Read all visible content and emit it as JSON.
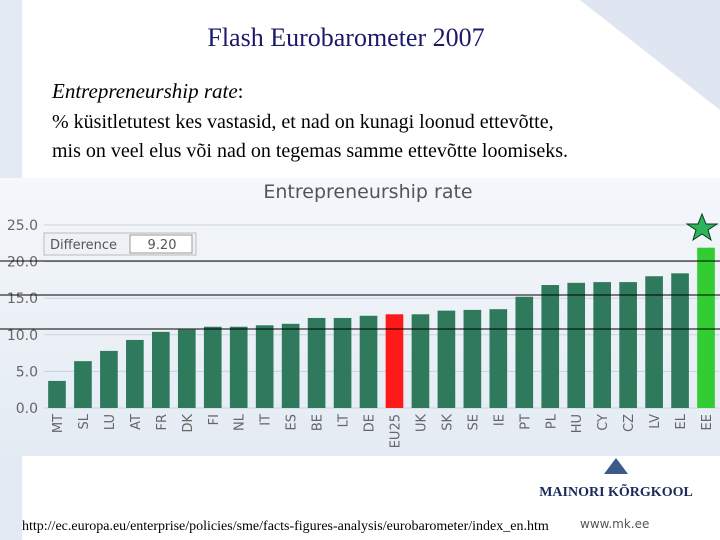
{
  "slide": {
    "title": "Flash Eurobarometer 2007",
    "intro_term": "Entrepreneurship rate",
    "intro_punct": ":",
    "body": [
      "% küsitletutest kes vastasid, et nad on kunagi loonud ettevõtte,",
      "mis on veel elus või nad on tegemas samme ettevõtte loomiseks."
    ],
    "source_url": "http://ec.europa.eu/enterprise/policies/sme/facts-figures-analysis/eurobarometer/index_en.htm",
    "website": "www.mk.ee",
    "logo": "MAINORI KÕRGKOOL"
  },
  "chart_data": {
    "type": "bar",
    "title": "Entrepreneurship rate",
    "difference_label": "Difference",
    "difference_value": "9.20",
    "categories": [
      "MT",
      "SL",
      "LU",
      "AT",
      "FR",
      "DK",
      "FI",
      "NL",
      "IT",
      "ES",
      "BE",
      "LT",
      "DE",
      "EU25",
      "UK",
      "SK",
      "SE",
      "IE",
      "PT",
      "PL",
      "HU",
      "CY",
      "CZ",
      "LV",
      "EL",
      "EE"
    ],
    "values": [
      3.7,
      6.4,
      7.8,
      9.3,
      10.4,
      10.7,
      11.1,
      11.1,
      11.3,
      11.5,
      12.3,
      12.3,
      12.6,
      12.8,
      12.8,
      13.3,
      13.4,
      13.5,
      15.2,
      16.8,
      17.1,
      17.2,
      17.2,
      18.0,
      18.4,
      21.9
    ],
    "colors": [
      "#2f7a5c",
      "#2f7a5c",
      "#2f7a5c",
      "#2f7a5c",
      "#2f7a5c",
      "#2f7a5c",
      "#2f7a5c",
      "#2f7a5c",
      "#2f7a5c",
      "#2f7a5c",
      "#2f7a5c",
      "#2f7a5c",
      "#2f7a5c",
      "#ff1a1a",
      "#2f7a5c",
      "#2f7a5c",
      "#2f7a5c",
      "#2f7a5c",
      "#2f7a5c",
      "#2f7a5c",
      "#2f7a5c",
      "#2f7a5c",
      "#2f7a5c",
      "#2f7a5c",
      "#2f7a5c",
      "#33cc33"
    ],
    "ylim": [
      0,
      25
    ],
    "yticks": [
      {
        "value": 0,
        "label": "0.0"
      },
      {
        "value": 5,
        "label": "5.0"
      },
      {
        "value": 10,
        "label": "10.0"
      },
      {
        "value": 15,
        "label": "15.0"
      },
      {
        "value": 20,
        "label": "20.0"
      },
      {
        "value": 25,
        "label": "25.0"
      }
    ],
    "grid": true
  }
}
